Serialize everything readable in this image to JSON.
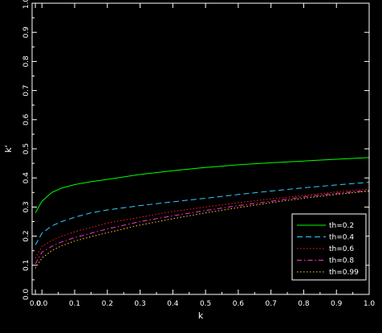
{
  "chart_data": {
    "type": "line",
    "title": "",
    "xlabel": "k",
    "ylabel": "k'",
    "xlim": [
      -0.03,
      1.0
    ],
    "ylim": [
      0.0,
      1.0
    ],
    "x_ticks": [
      "0.0",
      "0.0",
      "0.1",
      "0.2",
      "0.3",
      "0.4",
      "0.5",
      "0.6",
      "0.7",
      "0.8",
      "0.9",
      "1.0"
    ],
    "x_tick_values": [
      -0.02,
      0.0,
      0.1,
      0.2,
      0.3,
      0.4,
      0.5,
      0.6,
      0.7,
      0.8,
      0.9,
      1.0
    ],
    "y_ticks": [
      "0.0",
      "0.1",
      "0.2",
      "0.3",
      "0.4",
      "0.5",
      "0.6",
      "0.7",
      "0.8",
      "0.9",
      "1.0"
    ],
    "y_tick_values": [
      0.0,
      0.1,
      0.2,
      0.3,
      0.4,
      0.5,
      0.6,
      0.7,
      0.8,
      0.9,
      1.0
    ],
    "grid": false,
    "legend_position": "bottom-right",
    "x": [
      -0.02,
      0.0,
      0.03,
      0.06,
      0.1,
      0.15,
      0.2,
      0.3,
      0.4,
      0.5,
      0.6,
      0.7,
      0.8,
      0.9,
      1.0
    ],
    "series": [
      {
        "name": "th=0.2",
        "color": "#00ff00",
        "dash": "solid",
        "values": [
          0.28,
          0.32,
          0.35,
          0.365,
          0.377,
          0.387,
          0.395,
          0.412,
          0.425,
          0.436,
          0.445,
          0.452,
          0.458,
          0.464,
          0.47
        ]
      },
      {
        "name": "th=0.4",
        "color": "#33ccff",
        "dash": "dashed",
        "values": [
          0.17,
          0.21,
          0.235,
          0.25,
          0.265,
          0.28,
          0.29,
          0.305,
          0.318,
          0.33,
          0.343,
          0.355,
          0.366,
          0.376,
          0.385
        ]
      },
      {
        "name": "th=0.6",
        "color": "#ff2020",
        "dash": "dotted",
        "values": [
          0.125,
          0.165,
          0.185,
          0.2,
          0.215,
          0.23,
          0.245,
          0.265,
          0.285,
          0.3,
          0.315,
          0.328,
          0.34,
          0.352,
          0.362
        ]
      },
      {
        "name": "th=0.8",
        "color": "#ff33cc",
        "dash": "dashdot",
        "values": [
          0.105,
          0.145,
          0.165,
          0.18,
          0.195,
          0.21,
          0.225,
          0.25,
          0.27,
          0.288,
          0.305,
          0.32,
          0.335,
          0.347,
          0.357
        ]
      },
      {
        "name": "th=0.99",
        "color": "#ffcc33",
        "dash": "dotted",
        "values": [
          0.09,
          0.125,
          0.15,
          0.167,
          0.183,
          0.198,
          0.212,
          0.238,
          0.26,
          0.28,
          0.298,
          0.315,
          0.33,
          0.343,
          0.355
        ]
      }
    ]
  }
}
